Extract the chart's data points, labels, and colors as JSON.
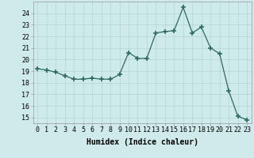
{
  "x": [
    0,
    1,
    2,
    3,
    4,
    5,
    6,
    7,
    8,
    9,
    10,
    11,
    12,
    13,
    14,
    15,
    16,
    17,
    18,
    19,
    20,
    21,
    22,
    23
  ],
  "y": [
    19.2,
    19.1,
    18.9,
    18.6,
    18.3,
    18.3,
    18.4,
    18.3,
    18.3,
    18.7,
    20.6,
    20.1,
    20.1,
    22.3,
    22.4,
    22.5,
    24.5,
    22.3,
    22.8,
    21.0,
    20.5,
    17.3,
    15.1,
    14.8
  ],
  "xlabel": "Humidex (Indice chaleur)",
  "ylim": [
    14.5,
    25.0
  ],
  "xlim": [
    -0.5,
    23.5
  ],
  "yticks": [
    15,
    16,
    17,
    18,
    19,
    20,
    21,
    22,
    23,
    24
  ],
  "xticks": [
    0,
    1,
    2,
    3,
    4,
    5,
    6,
    7,
    8,
    9,
    10,
    11,
    12,
    13,
    14,
    15,
    16,
    17,
    18,
    19,
    20,
    21,
    22,
    23
  ],
  "line_color": "#2e6b5e",
  "marker_color": "#2e6b5e",
  "bg_color": "#ceeaea",
  "grid_color": "#b8d8d8",
  "axis_fontsize": 7,
  "tick_fontsize": 6
}
